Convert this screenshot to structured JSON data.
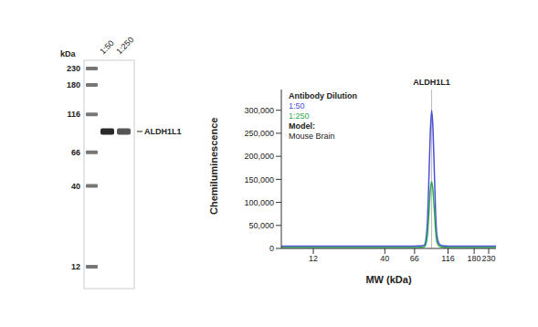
{
  "chart_data": [
    {
      "type": "blot",
      "unit_label": "kDa",
      "ladder": [
        230,
        180,
        116,
        66,
        40,
        12
      ],
      "lanes": [
        "1:50",
        "1:250"
      ],
      "band_label": "ALDH1L1",
      "band_mw": 90
    },
    {
      "type": "line",
      "title": "ALDH1L1",
      "x_label": "MW (kDa)",
      "y_label": "Chemiluminescence",
      "legend_title": "Antibody Dilution",
      "legend": "upper left",
      "annotation": {
        "label": "Model:",
        "text": "Mouse Brain"
      },
      "log": "x",
      "peak": 88,
      "x": [
        7,
        10,
        15,
        20,
        30,
        40,
        50,
        60,
        66,
        70,
        75,
        78,
        80,
        82,
        84,
        86,
        88,
        90,
        92,
        94,
        96,
        100,
        105,
        116,
        140,
        180,
        230,
        260
      ],
      "series": [
        {
          "name": "1:50",
          "color": "#4a4fd8",
          "values": [
            5000,
            5000,
            5000,
            5000,
            5000,
            5000,
            5000,
            5000,
            5000,
            5500,
            6000,
            8000,
            20000,
            60000,
            150000,
            250000,
            300000,
            260000,
            170000,
            80000,
            30000,
            10000,
            6000,
            5000,
            5000,
            5000,
            5000,
            5000
          ]
        },
        {
          "name": "1:250",
          "color": "#2fa84f",
          "values": [
            2000,
            2000,
            2000,
            2000,
            2000,
            2000,
            2000,
            2000,
            2000,
            2200,
            2500,
            4000,
            10000,
            30000,
            75000,
            125000,
            145000,
            125000,
            85000,
            40000,
            15000,
            5000,
            3000,
            2000,
            2000,
            2000,
            2000,
            2000
          ]
        }
      ],
      "xlim": [
        7,
        260
      ],
      "xticks": [
        12,
        40,
        66,
        116,
        180,
        230
      ],
      "ylim": [
        0,
        345000
      ],
      "yticks": [
        0,
        {
          "value": 50000,
          "label": "50,000"
        },
        {
          "value": 100000,
          "label": "100,000"
        },
        {
          "value": 150000,
          "label": "150,000"
        },
        {
          "value": 200000,
          "label": "200,000"
        },
        {
          "value": 250000,
          "label": "250,000"
        },
        {
          "value": 300000,
          "label": "300,000"
        }
      ],
      "grid": false
    }
  ]
}
